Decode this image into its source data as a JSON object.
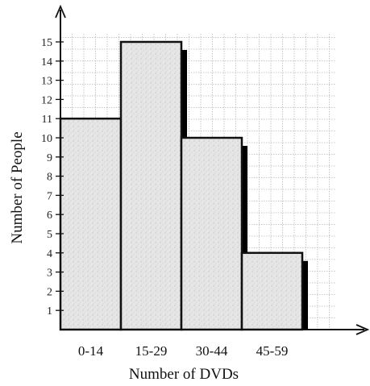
{
  "chart_data": {
    "type": "bar",
    "categories": [
      "0-14",
      "15-29",
      "30-44",
      "45-59"
    ],
    "values": [
      11,
      15,
      10,
      4
    ],
    "title": "",
    "xlabel": "Number of DVDs",
    "ylabel": "Number of People",
    "ylim": [
      0,
      16
    ],
    "yticks": [
      1,
      2,
      3,
      4,
      5,
      6,
      7,
      8,
      9,
      10,
      11,
      12,
      13,
      14,
      15
    ],
    "grid": true,
    "legend": "none"
  },
  "colors": {
    "bar_fill": "#e4e4e4",
    "bar_stroke": "#111111",
    "bar_shadow": "#000000",
    "grid": "#b9b9b9",
    "axis": "#111111",
    "background": "#ffffff"
  }
}
